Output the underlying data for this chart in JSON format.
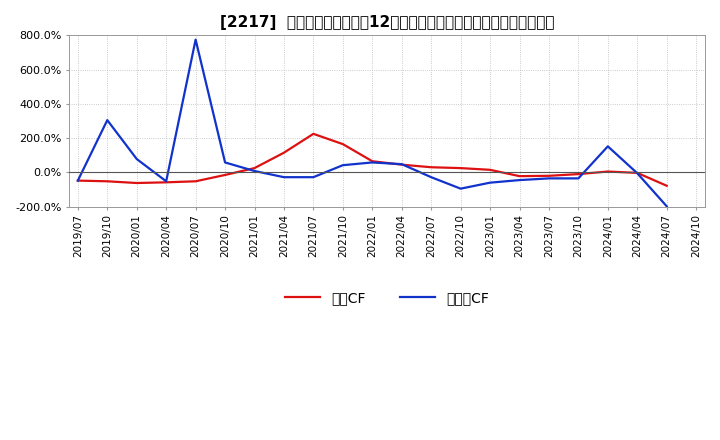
{
  "title": "[2217]  キャッシュフローの12か月移動合計の対前年同期増減率の推移",
  "ylim": [
    -200,
    800
  ],
  "yticks": [
    -200,
    0,
    200,
    400,
    600,
    800
  ],
  "background_color": "#ffffff",
  "grid_color": "#bbbbbb",
  "legend_labels": [
    "営業CF",
    "フリーCF"
  ],
  "line_colors": [
    "#dd1111",
    "#1133cc"
  ],
  "dates": [
    "2019/07",
    "2019/10",
    "2020/01",
    "2020/04",
    "2020/07",
    "2020/10",
    "2021/01",
    "2021/04",
    "2021/07",
    "2021/10",
    "2022/01",
    "2022/04",
    "2022/07",
    "2022/10",
    "2023/01",
    "2023/04",
    "2023/07",
    "2023/10",
    "2024/01",
    "2024/04",
    "2024/07",
    "2024/10"
  ],
  "operating_cf": [
    -48,
    -52,
    -62,
    -58,
    -52,
    -15,
    25,
    115,
    225,
    165,
    65,
    45,
    30,
    25,
    15,
    -22,
    -20,
    -10,
    5,
    -3,
    -78,
    null
  ],
  "free_cf": [
    -48,
    305,
    78,
    -52,
    775,
    58,
    8,
    -28,
    -28,
    42,
    58,
    48,
    -28,
    -95,
    -60,
    -45,
    -35,
    -35,
    152,
    -5,
    -198,
    null
  ]
}
